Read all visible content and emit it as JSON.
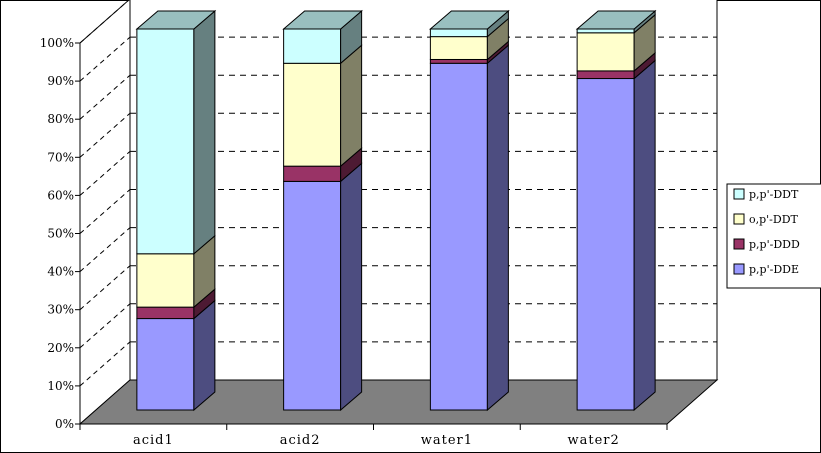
{
  "chart_data": {
    "type": "bar",
    "stacked": true,
    "percent_stacked": true,
    "three_d": true,
    "title": "",
    "xlabel": "",
    "ylabel": "",
    "ylim": [
      0,
      100
    ],
    "yticks": [
      "0%",
      "10%",
      "20%",
      "30%",
      "40%",
      "50%",
      "60%",
      "70%",
      "80%",
      "90%",
      "100%"
    ],
    "grid": "horizontal-dashed",
    "legend_position": "right",
    "categories": [
      "acid1",
      "acid2",
      "water1",
      "water2"
    ],
    "series": [
      {
        "name": "p,p'-DDE",
        "values": [
          24,
          60,
          91,
          87
        ],
        "color": "#9999ff"
      },
      {
        "name": "p,p'-DDD",
        "values": [
          3,
          4,
          1,
          2
        ],
        "color": "#993366"
      },
      {
        "name": "o,p'-DDT",
        "values": [
          14,
          27,
          6,
          10
        ],
        "color": "#ffffcc"
      },
      {
        "name": "p,p'-DDT",
        "values": [
          59,
          9,
          2,
          1
        ],
        "color": "#ccffff"
      }
    ],
    "legend_labels_as_shown": [
      "p,p'-DDT",
      "o,p'-DDT",
      "p,p'-DDD",
      "p,p'-DDE"
    ]
  }
}
